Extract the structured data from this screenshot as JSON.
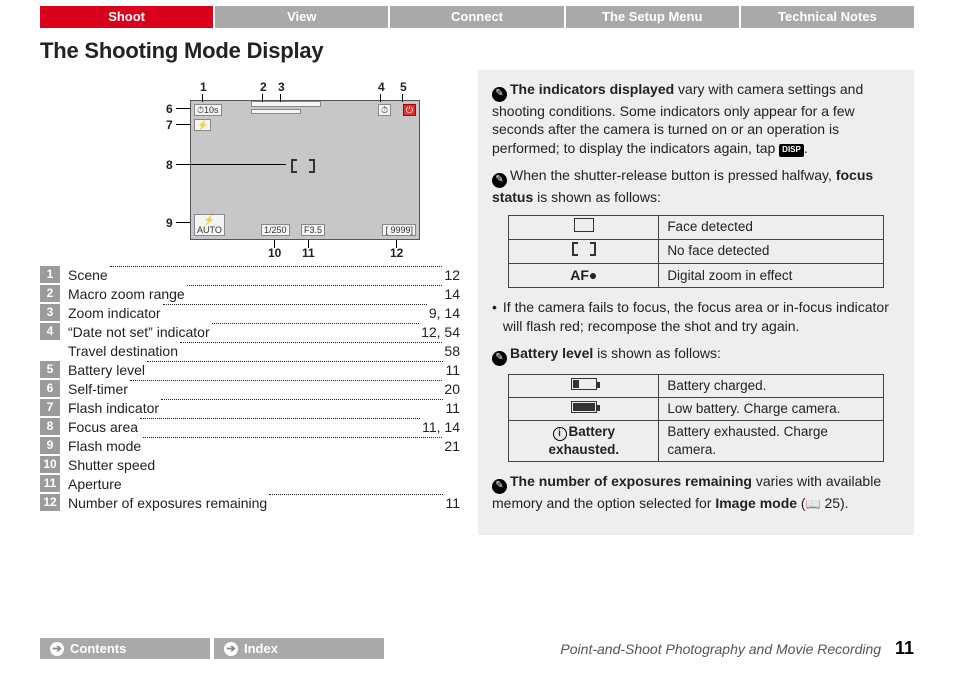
{
  "tabs": [
    {
      "label": "Shoot",
      "active": true
    },
    {
      "label": "View",
      "active": false
    },
    {
      "label": "Connect",
      "active": false
    },
    {
      "label": "The Setup Menu",
      "active": false
    },
    {
      "label": "Technical Notes",
      "active": false
    }
  ],
  "page_title": "The Shooting Mode Display",
  "diagram": {
    "callouts": [
      "1",
      "2",
      "3",
      "4",
      "5",
      "6",
      "7",
      "8",
      "9",
      "10",
      "11",
      "12"
    ],
    "screen_indicators": {
      "self_timer": "⏱10s",
      "flash_ind": "⚡",
      "flash_mode": "⚡\nAUTO",
      "shutter": "1/250",
      "aperture": "F3.5",
      "exposures": "[ 9999]"
    }
  },
  "legend": [
    {
      "n": "1",
      "label": "Scene",
      "page": "12"
    },
    {
      "n": "2",
      "label": "Macro zoom range",
      "page": "14"
    },
    {
      "n": "3",
      "label": "Zoom indicator",
      "page": "9, 14"
    },
    {
      "n": "4",
      "label": "“Date not set” indicator",
      "page": "12, 54"
    },
    {
      "n": "",
      "label": "Travel destination",
      "page": "58",
      "sub": true
    },
    {
      "n": "5",
      "label": "Battery level",
      "page": "11"
    },
    {
      "n": "6",
      "label": "Self-timer",
      "page": "20"
    },
    {
      "n": "7",
      "label": "Flash indicator",
      "page": "11"
    },
    {
      "n": "8",
      "label": "Focus area",
      "page": "11, 14"
    },
    {
      "n": "9",
      "label": "Flash mode",
      "page": "21"
    },
    {
      "n": "10",
      "label": "Shutter speed",
      "page": ""
    },
    {
      "n": "11",
      "label": "Aperture",
      "page": ""
    },
    {
      "n": "12",
      "label": "Number of exposures remaining",
      "page": "11"
    }
  ],
  "notes": {
    "p1_strong": "The indicators displayed",
    "p1_rest": " vary with camera settings and shooting conditions. Some indicators only appear for a few seconds after the camera is turned on or an operation is performed; to display the indicators again, tap ",
    "disp": "DISP",
    "p2_a": "When the shutter-release button is pressed halfway, ",
    "p2_strong": "focus status",
    "p2_b": " is shown as follows:",
    "focus_table": [
      {
        "desc": "Face detected"
      },
      {
        "desc": "No face detected"
      },
      {
        "desc": "Digital zoom in effect"
      }
    ],
    "p3": "If the camera fails to focus, the focus area or in-focus indicator will flash red; recompose the shot and try again.",
    "p4_strong": "Battery level",
    "p4_rest": " is shown as follows:",
    "batt_table": [
      {
        "desc": "Battery charged."
      },
      {
        "desc": "Low battery. Charge camera."
      },
      {
        "label": "Battery exhausted.",
        "desc": "Battery exhausted. Charge camera."
      }
    ],
    "p5_strong": "The number of exposures remaining",
    "p5_a": " varies with available memory and the option selected for ",
    "p5_strong2": "Image mode",
    "p5_ref": " 25)."
  },
  "footer": {
    "contents": "Contents",
    "index": "Index",
    "section": "Point-and-Shoot Photography and Movie Recording",
    "page": "11"
  },
  "colors": {
    "active_tab": "#d9001b",
    "inactive_tab": "#a9a9a9",
    "numbox": "#9b9b9b",
    "note_bg": "#eeeeee"
  }
}
